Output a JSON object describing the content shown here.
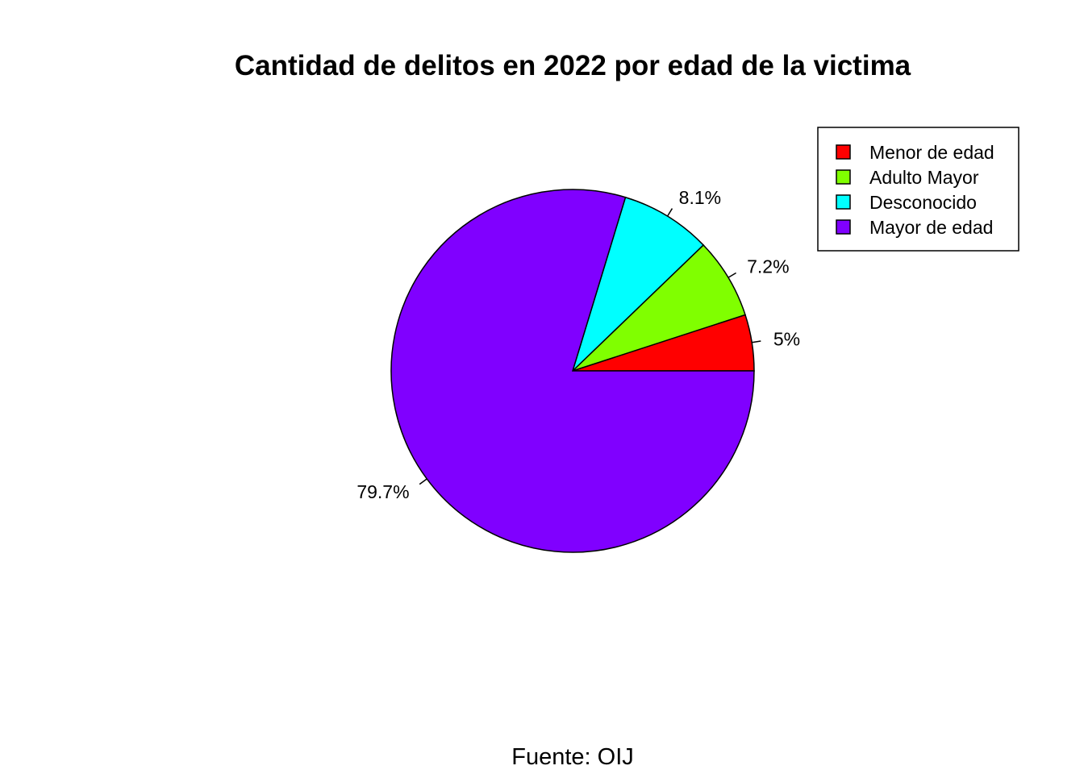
{
  "chart_data": {
    "type": "pie",
    "title": "Cantidad de delitos en 2022 por edad de la victima",
    "caption": "Fuente: OIJ",
    "categories": [
      "Menor de edad",
      "Adulto Mayor",
      "Desconocido",
      "Mayor de edad"
    ],
    "values": [
      5.0,
      7.2,
      8.1,
      79.7
    ],
    "labels": [
      "5%",
      "7.2%",
      "8.1%",
      "79.7%"
    ],
    "colors": [
      "#FF0000",
      "#80FF00",
      "#00FFFF",
      "#8000FF"
    ],
    "start_angle_deg": 0,
    "direction": "counterclockwise",
    "legend": {
      "position": "top-right",
      "entries": [
        "Menor de edad",
        "Adulto Mayor",
        "Desconocido",
        "Mayor de edad"
      ]
    }
  }
}
